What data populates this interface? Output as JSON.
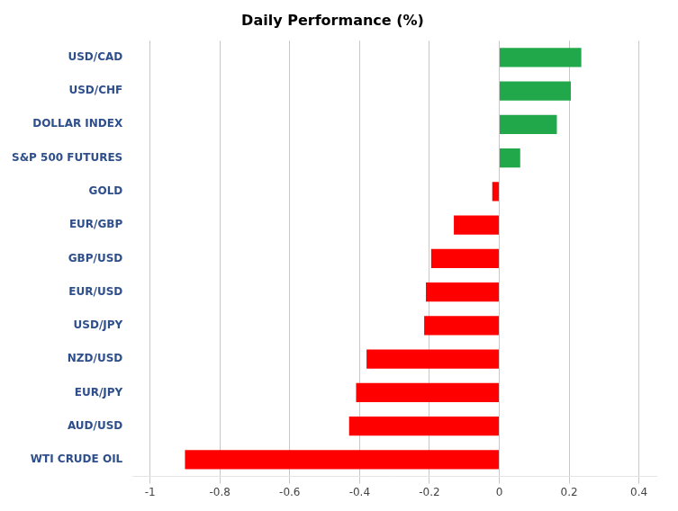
{
  "chart_data": {
    "type": "bar",
    "orientation": "horizontal",
    "title": "Daily Performance (%)",
    "categories": [
      "WTI CRUDE OIL",
      "AUD/USD",
      "EUR/JPY",
      "NZD/USD",
      "USD/JPY",
      "EUR/USD",
      "GBP/USD",
      "EUR/GBP",
      "GOLD",
      "S&P 500 FUTURES",
      "DOLLAR INDEX",
      "USD/CHF",
      "USD/CAD"
    ],
    "values": [
      -0.9,
      -0.43,
      -0.41,
      -0.38,
      -0.215,
      -0.21,
      -0.195,
      -0.13,
      -0.02,
      0.06,
      0.165,
      0.205,
      0.235
    ],
    "colors": [
      "#FF0000",
      "#FF0000",
      "#FF0000",
      "#FF0000",
      "#FF0000",
      "#FF0000",
      "#FF0000",
      "#FF0000",
      "#FF0000",
      "#21A84A",
      "#21A84A",
      "#21A84A",
      "#21A84A"
    ],
    "xlim": [
      -1.05,
      0.45
    ],
    "xticks": [
      -1.0,
      -0.8,
      -0.6,
      -0.4,
      -0.2,
      0.0,
      0.2,
      0.4
    ],
    "grid": true
  }
}
